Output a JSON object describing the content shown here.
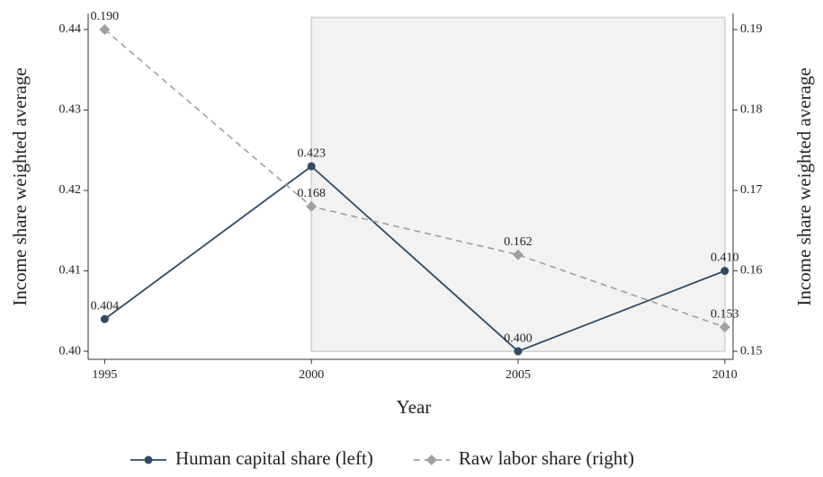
{
  "chart_data": {
    "type": "line",
    "x_label": "Year",
    "y_label": "Income share weighted average",
    "y2_label": "Income share weighted average",
    "x": [
      1995,
      2000,
      2005,
      2010
    ],
    "xlim": [
      1994.6,
      2010.2
    ],
    "xticks": [
      1995,
      2000,
      2005,
      2010
    ],
    "ylim": [
      0.399,
      0.442
    ],
    "yticks": [
      {
        "value": 0.4,
        "label": "0.40"
      },
      0.41,
      0.42,
      0.43,
      0.44
    ],
    "y2lim": [
      0.149,
      0.192
    ],
    "y2ticks": [
      0.15,
      0.16,
      0.17,
      0.18,
      0.19
    ],
    "highlight_x": [
      2000,
      2010
    ],
    "highlight_ylim": [
      0.4,
      0.4415
    ],
    "series": [
      {
        "name": "Human capital share (left)",
        "color": "#2f4b63",
        "marker": "circle",
        "dash": false,
        "values": [
          0.404,
          0.423,
          0.4,
          0.41
        ],
        "value_labels": [
          "0.404",
          "0.423",
          "0.400",
          "0.410"
        ]
      },
      {
        "name": "Raw labor share (right)",
        "color": "#a0a0a0",
        "marker": "diamond",
        "dash": true,
        "axis": "y2",
        "values": [
          0.19,
          0.168,
          0.162,
          0.153
        ],
        "value_labels": [
          "0.190",
          "0.168",
          "0.162",
          "0.153"
        ]
      }
    ]
  }
}
